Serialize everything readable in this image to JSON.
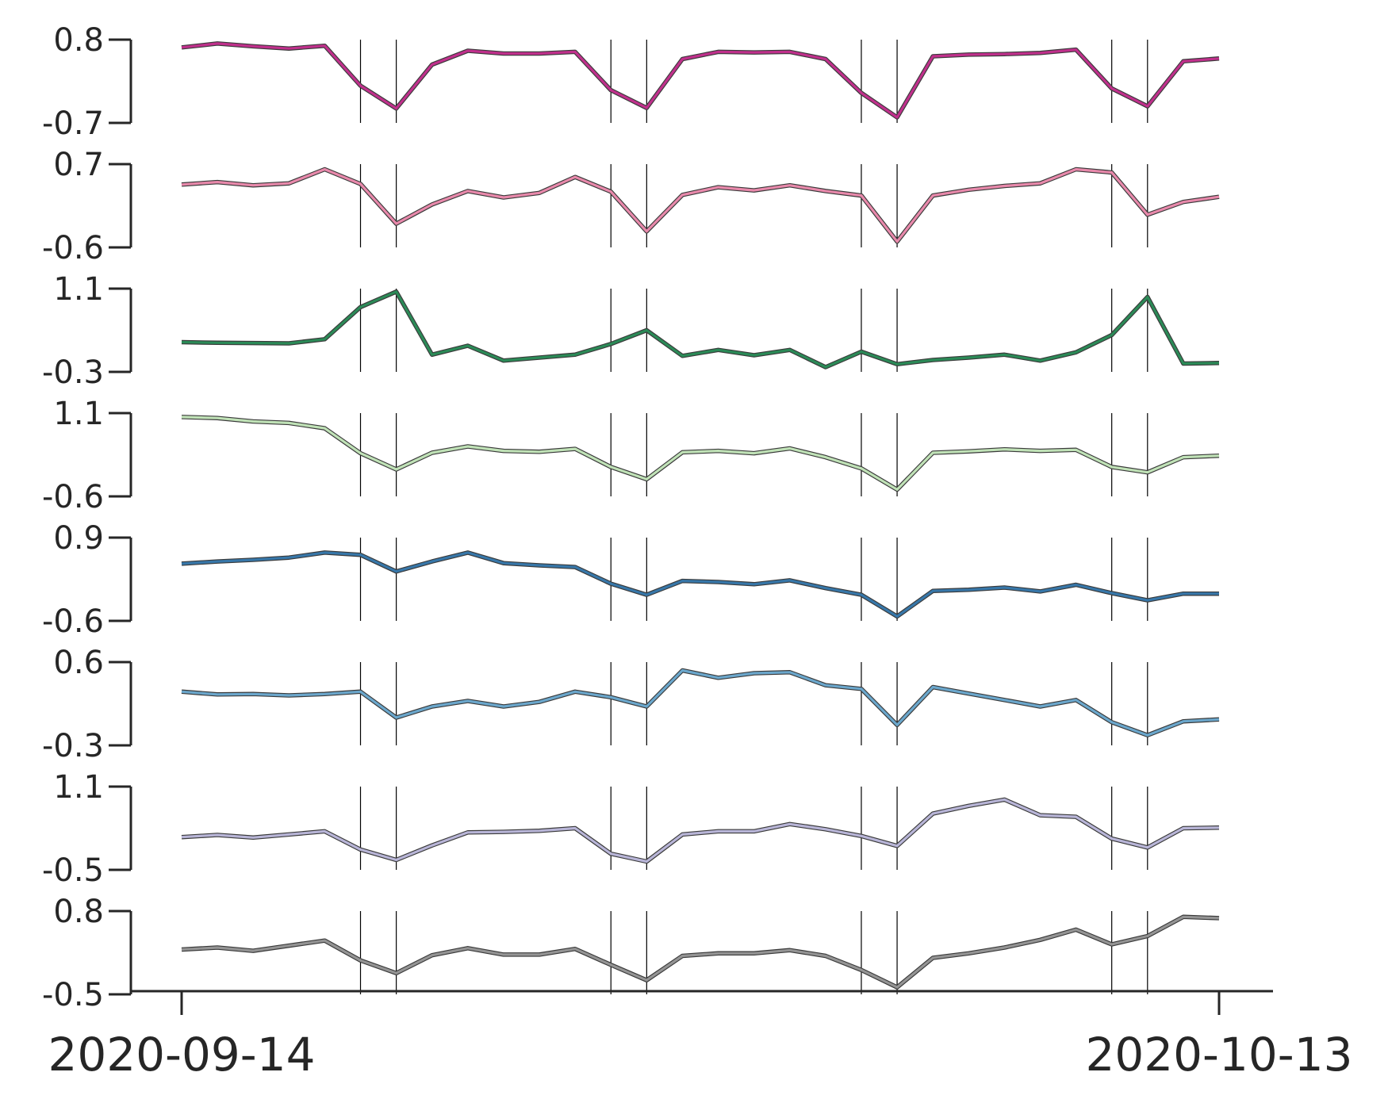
{
  "chart_data": {
    "type": "line",
    "layout": "stacked-panels",
    "x_labels": [
      "2020-09-14",
      "2020-10-13"
    ],
    "x": [
      "2020-09-14",
      "2020-09-15",
      "2020-09-16",
      "2020-09-17",
      "2020-09-18",
      "2020-09-19",
      "2020-09-20",
      "2020-09-21",
      "2020-09-22",
      "2020-09-23",
      "2020-09-24",
      "2020-09-25",
      "2020-09-26",
      "2020-09-27",
      "2020-09-28",
      "2020-09-29",
      "2020-09-30",
      "2020-10-01",
      "2020-10-02",
      "2020-10-03",
      "2020-10-04",
      "2020-10-05",
      "2020-10-06",
      "2020-10-07",
      "2020-10-08",
      "2020-10-09",
      "2020-10-10",
      "2020-10-11",
      "2020-10-12",
      "2020-10-13"
    ],
    "vlines": [
      "2020-09-19",
      "2020-09-20",
      "2020-09-26",
      "2020-09-27",
      "2020-10-03",
      "2020-10-04",
      "2020-10-10",
      "2020-10-11"
    ],
    "grid": false,
    "legend": "none",
    "panels": [
      {
        "ylim": [
          -0.7,
          0.8
        ],
        "yticks": [
          "0.8",
          "-0.7"
        ],
        "color": "#c0308c",
        "values": [
          0.66,
          0.73,
          0.68,
          0.64,
          0.69,
          -0.03,
          -0.44,
          0.35,
          0.6,
          0.55,
          0.55,
          0.58,
          -0.11,
          -0.43,
          0.45,
          0.58,
          0.57,
          0.58,
          0.45,
          -0.16,
          -0.6,
          0.5,
          0.53,
          0.54,
          0.56,
          0.62,
          -0.08,
          -0.4,
          0.41,
          0.46
        ]
      },
      {
        "ylim": [
          -0.6,
          0.7
        ],
        "yticks": [
          "0.7",
          "-0.6"
        ],
        "color": "#e889ab",
        "values": [
          0.38,
          0.42,
          0.37,
          0.4,
          0.62,
          0.39,
          -0.23,
          0.07,
          0.28,
          0.18,
          0.25,
          0.5,
          0.27,
          -0.35,
          0.22,
          0.34,
          0.29,
          0.37,
          0.28,
          0.21,
          -0.51,
          0.21,
          0.3,
          0.36,
          0.4,
          0.62,
          0.57,
          -0.09,
          0.11,
          0.19
        ]
      },
      {
        "ylim": [
          -0.3,
          1.1
        ],
        "yticks": [
          "1.1",
          "-0.3"
        ],
        "color": "#2b8a57",
        "values": [
          0.2,
          0.19,
          0.185,
          0.18,
          0.25,
          0.79,
          1.05,
          -0.01,
          0.14,
          -0.11,
          -0.06,
          -0.01,
          0.17,
          0.4,
          -0.03,
          0.07,
          -0.02,
          0.07,
          -0.22,
          0.04,
          -0.17,
          -0.1,
          -0.06,
          -0.01,
          -0.11,
          0.03,
          0.32,
          0.96,
          -0.16,
          -0.15
        ]
      },
      {
        "ylim": [
          -0.6,
          1.1
        ],
        "yticks": [
          "1.1",
          "-0.6"
        ],
        "color": "#c0e2b7",
        "values": [
          1.02,
          1.0,
          0.93,
          0.9,
          0.79,
          0.28,
          -0.05,
          0.29,
          0.42,
          0.33,
          0.31,
          0.37,
          0.0,
          -0.25,
          0.3,
          0.33,
          0.28,
          0.38,
          0.2,
          -0.03,
          -0.46,
          0.29,
          0.32,
          0.36,
          0.33,
          0.35,
          0.0,
          -0.11,
          0.2,
          0.23
        ]
      },
      {
        "ylim": [
          -0.6,
          0.9
        ],
        "yticks": [
          "0.9",
          "-0.6"
        ],
        "color": "#3777a9",
        "values": [
          0.43,
          0.47,
          0.5,
          0.54,
          0.63,
          0.59,
          0.29,
          0.47,
          0.63,
          0.44,
          0.4,
          0.37,
          0.07,
          -0.13,
          0.12,
          0.1,
          0.06,
          0.13,
          -0.01,
          -0.13,
          -0.52,
          -0.06,
          -0.04,
          0.0,
          -0.07,
          0.05,
          -0.1,
          -0.23,
          -0.11,
          -0.11
        ]
      },
      {
        "ylim": [
          -0.3,
          0.6
        ],
        "yticks": [
          "0.6",
          "-0.3"
        ],
        "color": "#6ba7cc",
        "values": [
          0.28,
          0.25,
          0.255,
          0.24,
          0.255,
          0.28,
          0.0,
          0.12,
          0.18,
          0.12,
          0.17,
          0.28,
          0.22,
          0.12,
          0.51,
          0.43,
          0.48,
          0.49,
          0.35,
          0.31,
          -0.08,
          0.33,
          0.26,
          0.19,
          0.12,
          0.19,
          -0.05,
          -0.19,
          -0.04,
          -0.02
        ]
      },
      {
        "ylim": [
          -0.5,
          1.1
        ],
        "yticks": [
          "1.1",
          "-0.5"
        ],
        "color": "#b8b5d7",
        "values": [
          0.13,
          0.17,
          0.12,
          0.18,
          0.24,
          -0.11,
          -0.31,
          -0.03,
          0.22,
          0.23,
          0.25,
          0.3,
          -0.19,
          -0.34,
          0.18,
          0.24,
          0.24,
          0.38,
          0.28,
          0.15,
          -0.04,
          0.58,
          0.73,
          0.85,
          0.55,
          0.52,
          0.1,
          -0.07,
          0.3,
          0.31
        ]
      },
      {
        "ylim": [
          -0.5,
          0.8
        ],
        "yticks": [
          "0.8",
          "-0.5"
        ],
        "color": "#949494",
        "values": [
          0.2,
          0.23,
          0.18,
          0.26,
          0.34,
          0.03,
          -0.17,
          0.11,
          0.22,
          0.12,
          0.12,
          0.21,
          -0.04,
          -0.28,
          0.1,
          0.14,
          0.14,
          0.19,
          0.1,
          -0.12,
          -0.39,
          0.07,
          0.14,
          0.23,
          0.35,
          0.51,
          0.28,
          0.41,
          0.71,
          0.69
        ]
      }
    ]
  }
}
